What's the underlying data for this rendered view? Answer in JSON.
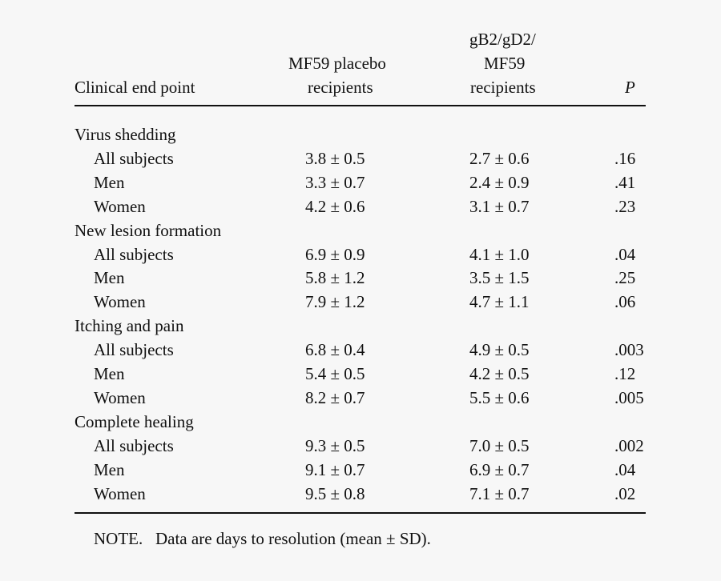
{
  "table": {
    "headers": {
      "clinical_end_point": "Clinical end point",
      "placebo_line1": "MF59 placebo",
      "placebo_line2": "recipients",
      "vaccine_line1": "gB2/gD2/",
      "vaccine_line2": "MF59",
      "vaccine_line3": "recipients",
      "p": "P"
    },
    "groups": [
      {
        "title": "Virus shedding",
        "rows": [
          {
            "label": "All subjects",
            "placebo": "3.8 ± 0.5",
            "vaccine": "2.7 ± 0.6",
            "p": ".16"
          },
          {
            "label": "Men",
            "placebo": "3.3 ± 0.7",
            "vaccine": "2.4 ± 0.9",
            "p": ".41"
          },
          {
            "label": "Women",
            "placebo": "4.2 ± 0.6",
            "vaccine": "3.1 ± 0.7",
            "p": ".23"
          }
        ]
      },
      {
        "title": "New lesion formation",
        "rows": [
          {
            "label": "All subjects",
            "placebo": "6.9 ± 0.9",
            "vaccine": "4.1 ± 1.0",
            "p": ".04"
          },
          {
            "label": "Men",
            "placebo": "5.8 ± 1.2",
            "vaccine": "3.5 ± 1.5",
            "p": ".25"
          },
          {
            "label": "Women",
            "placebo": "7.9 ± 1.2",
            "vaccine": "4.7 ± 1.1",
            "p": ".06"
          }
        ]
      },
      {
        "title": "Itching and pain",
        "rows": [
          {
            "label": "All subjects",
            "placebo": "6.8 ± 0.4",
            "vaccine": "4.9 ± 0.5",
            "p": ".003"
          },
          {
            "label": "Men",
            "placebo": "5.4 ± 0.5",
            "vaccine": "4.2 ± 0.5",
            "p": ".12"
          },
          {
            "label": "Women",
            "placebo": "8.2 ± 0.7",
            "vaccine": "5.5 ± 0.6",
            "p": ".005"
          }
        ]
      },
      {
        "title": "Complete healing",
        "rows": [
          {
            "label": "All subjects",
            "placebo": "9.3 ± 0.5",
            "vaccine": "7.0 ± 0.5",
            "p": ".002"
          },
          {
            "label": "Men",
            "placebo": "9.1 ± 0.7",
            "vaccine": "6.9 ± 0.7",
            "p": ".04"
          },
          {
            "label": "Women",
            "placebo": "9.5 ± 0.8",
            "vaccine": "7.1 ± 0.7",
            "p": ".02"
          }
        ]
      }
    ],
    "note": "NOTE.   Data are days to resolution (mean ± SD)."
  }
}
